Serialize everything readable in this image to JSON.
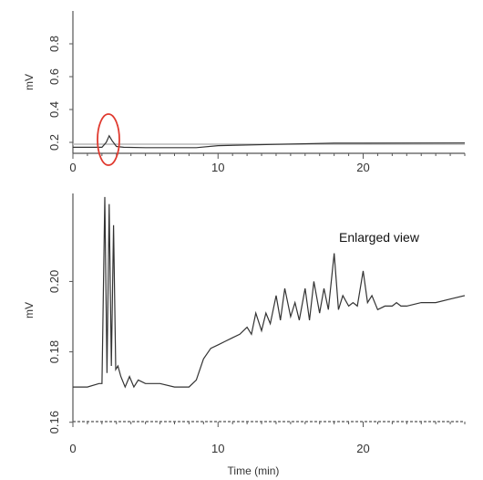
{
  "chart_data": [
    {
      "type": "line",
      "panel": "overview",
      "title": "",
      "xlabel": "",
      "ylabel": "mV",
      "xlim": [
        0,
        27
      ],
      "ylim": [
        0.1,
        1.0
      ],
      "xticks": [
        "0",
        "10",
        "20"
      ],
      "yticks": [
        "0.2",
        "0.4",
        "0.6",
        "0.8"
      ],
      "highlight_color": "#e03a2f",
      "series": [
        {
          "x": [
            0,
            2.0,
            2.3,
            2.5,
            2.7,
            3.0,
            3.5,
            5,
            8.5,
            10,
            14,
            18,
            20,
            27
          ],
          "y": [
            0.17,
            0.17,
            0.2,
            0.24,
            0.21,
            0.175,
            0.17,
            0.168,
            0.168,
            0.18,
            0.188,
            0.195,
            0.195,
            0.196
          ]
        }
      ]
    },
    {
      "type": "line",
      "panel": "enlarged",
      "title": "",
      "annotation": "Enlarged view",
      "xlabel": "Time (min)",
      "ylabel": "mV",
      "xlim": [
        0,
        27
      ],
      "ylim": [
        0.155,
        0.225
      ],
      "xticks": [
        "0",
        "10",
        "20"
      ],
      "yticks": [
        "0.16",
        "0.18",
        "0.20"
      ],
      "series": [
        {
          "x": [
            0,
            1,
            1.8,
            2.0,
            2.2,
            2.35,
            2.5,
            2.65,
            2.8,
            2.95,
            3.1,
            3.3,
            3.6,
            3.9,
            4.2,
            4.5,
            5,
            5.5,
            6,
            7,
            8,
            8.5,
            9,
            9.5,
            10,
            10.5,
            11,
            11.5,
            12,
            12.3,
            12.6,
            13,
            13.3,
            13.6,
            14,
            14.3,
            14.6,
            15,
            15.3,
            15.6,
            16,
            16.3,
            16.6,
            17,
            17.3,
            17.6,
            18,
            18.3,
            18.6,
            19,
            19.3,
            19.6,
            20,
            20.3,
            20.6,
            21,
            21.5,
            22,
            22.3,
            22.6,
            23,
            24,
            25,
            26,
            27
          ],
          "y": [
            0.17,
            0.17,
            0.171,
            0.171,
            0.224,
            0.174,
            0.222,
            0.176,
            0.216,
            0.175,
            0.176,
            0.173,
            0.17,
            0.173,
            0.17,
            0.172,
            0.171,
            0.171,
            0.171,
            0.17,
            0.17,
            0.172,
            0.178,
            0.181,
            0.182,
            0.183,
            0.184,
            0.185,
            0.187,
            0.185,
            0.191,
            0.186,
            0.191,
            0.188,
            0.196,
            0.189,
            0.198,
            0.19,
            0.194,
            0.189,
            0.198,
            0.189,
            0.2,
            0.191,
            0.198,
            0.192,
            0.208,
            0.192,
            0.196,
            0.193,
            0.194,
            0.193,
            0.203,
            0.194,
            0.196,
            0.192,
            0.193,
            0.193,
            0.194,
            0.193,
            0.193,
            0.194,
            0.194,
            0.195,
            0.196
          ]
        }
      ]
    }
  ]
}
